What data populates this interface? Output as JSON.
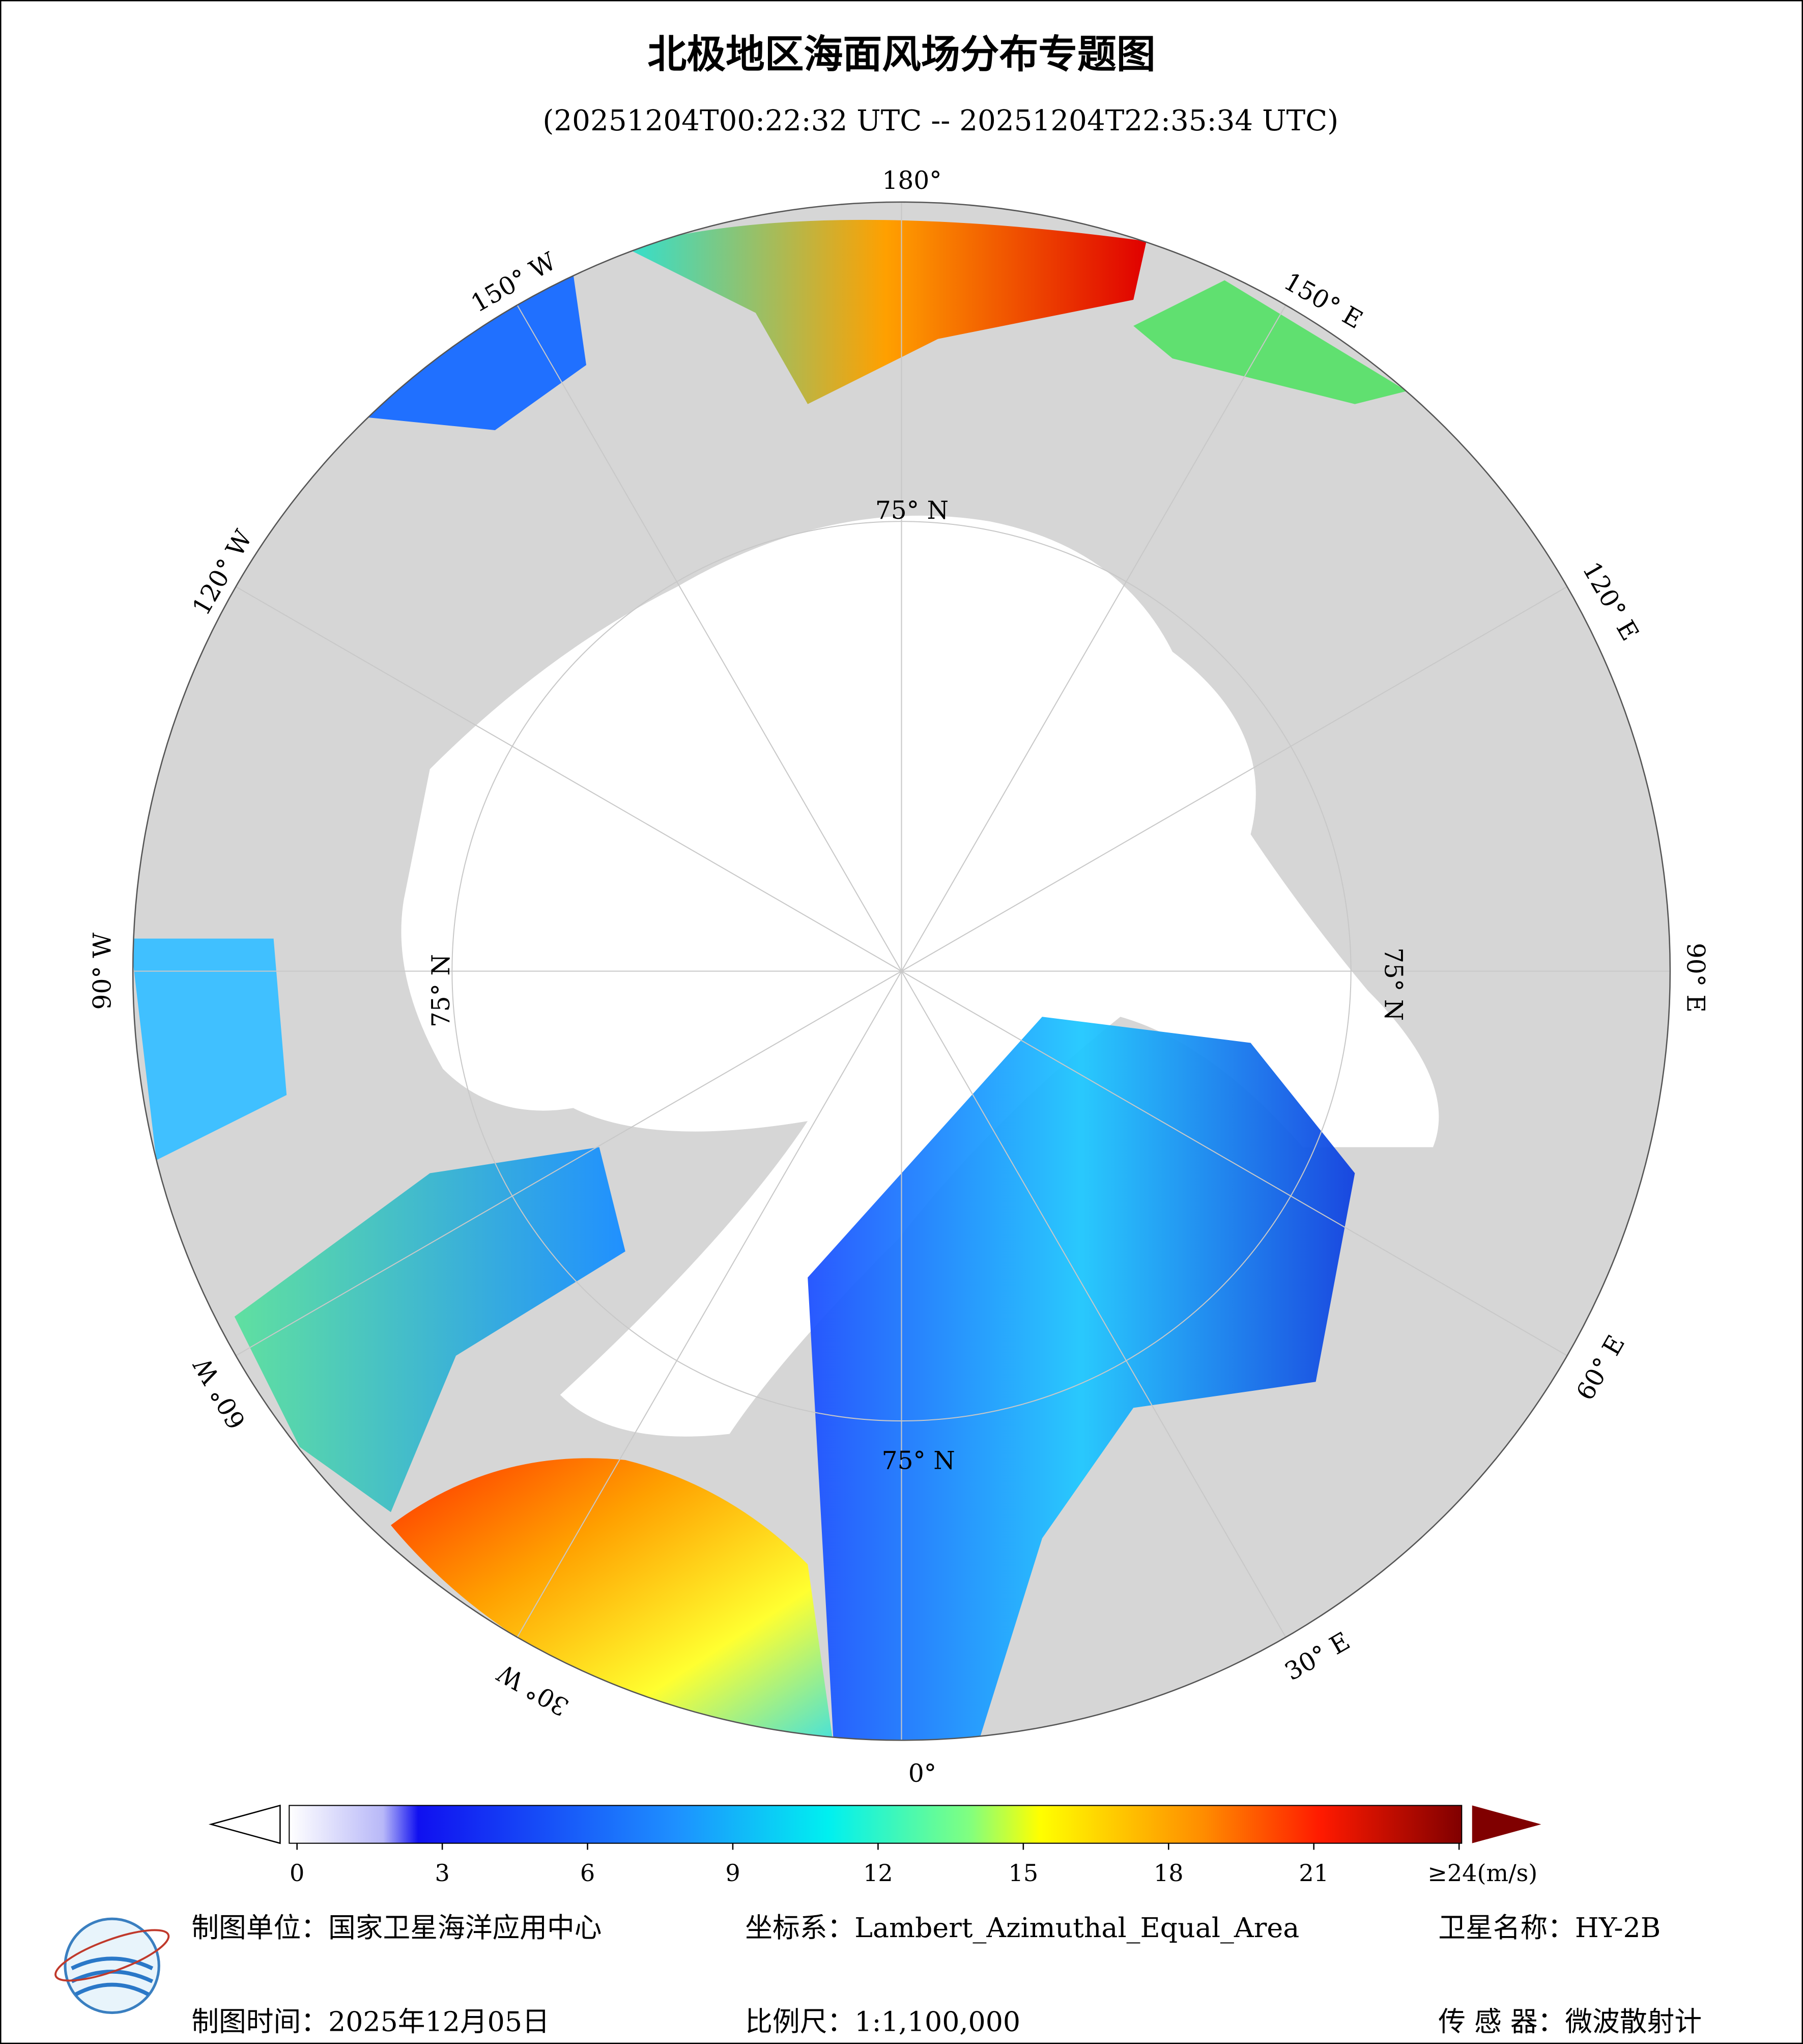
{
  "header": {
    "title": "北极地区海面风场分布专题图",
    "subtitle": "(20251204T00:22:32 UTC -- 20251204T22:35:34 UTC)"
  },
  "map": {
    "longitude_labels": [
      "180°",
      "150° W",
      "120° W",
      "90° W",
      "60° W",
      "30° W",
      "0°",
      "30° E",
      "60° E",
      "90° E",
      "120° E",
      "150° E"
    ],
    "latitude_labels": [
      "75° N",
      "75° N",
      "75° N",
      "75° N"
    ]
  },
  "colorbar": {
    "range": [
      0,
      24
    ],
    "ticks": [
      0,
      3,
      6,
      9,
      12,
      15,
      18,
      21,
      {
        "value": 24,
        "label": "≥24(m/s)"
      }
    ]
  },
  "footer": {
    "unit_label": "制图单位：国家卫星海洋应用中心",
    "crs_label": "坐标系：Lambert_Azimuthal_Equal_Area",
    "satellite_label": "卫星名称：HY-2B",
    "date_label": "制图时间：2025年12月05日",
    "scale_label": "比例尺：1:1,100,000",
    "sensor_label": "传 感 器：微波散射计"
  }
}
